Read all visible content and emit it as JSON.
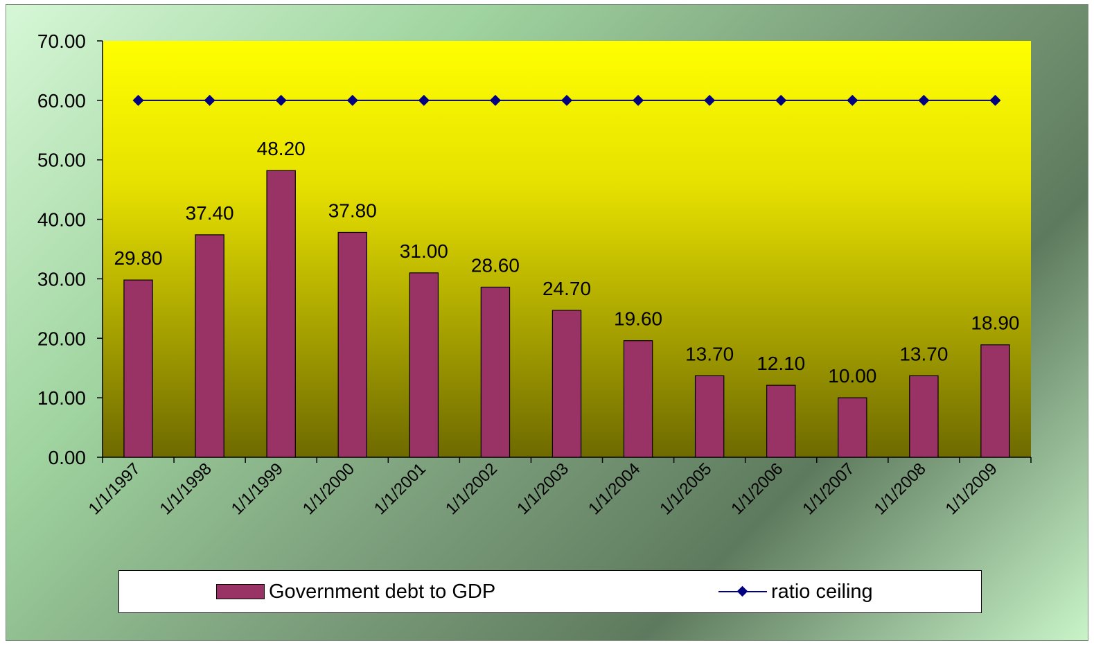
{
  "chart_data": {
    "type": "bar",
    "categories": [
      "1/1/1997",
      "1/1/1998",
      "1/1/1999",
      "1/1/2000",
      "1/1/2001",
      "1/1/2002",
      "1/1/2003",
      "1/1/2004",
      "1/1/2005",
      "1/1/2006",
      "1/1/2007",
      "1/1/2008",
      "1/1/2009"
    ],
    "series": [
      {
        "name": "Government debt to GDP",
        "type": "bar",
        "color": "#993366",
        "values": [
          29.8,
          37.4,
          48.2,
          37.8,
          31.0,
          28.6,
          24.7,
          19.6,
          13.7,
          12.1,
          10.0,
          13.7,
          18.9
        ],
        "labels": [
          "29.80",
          "37.40",
          "48.20",
          "37.80",
          "31.00",
          "28.60",
          "24.70",
          "19.60",
          "13.70",
          "12.10",
          "10.00",
          "13.70",
          "18.90"
        ]
      },
      {
        "name": "ratio ceiling",
        "type": "line",
        "color": "#000080",
        "marker": "diamond",
        "values": [
          60,
          60,
          60,
          60,
          60,
          60,
          60,
          60,
          60,
          60,
          60,
          60,
          60
        ]
      }
    ],
    "ylim": [
      0,
      70
    ],
    "yticks": [
      "0.00",
      "10.00",
      "20.00",
      "30.00",
      "40.00",
      "50.00",
      "60.00",
      "70.00"
    ],
    "ytick_values": [
      0,
      10,
      20,
      30,
      40,
      50,
      60,
      70
    ],
    "grid": false,
    "legend_position": "bottom",
    "plot_background": "yellow-to-olive gradient"
  },
  "legend": {
    "bar_label": "Government debt to GDP",
    "line_label": "ratio ceiling"
  }
}
